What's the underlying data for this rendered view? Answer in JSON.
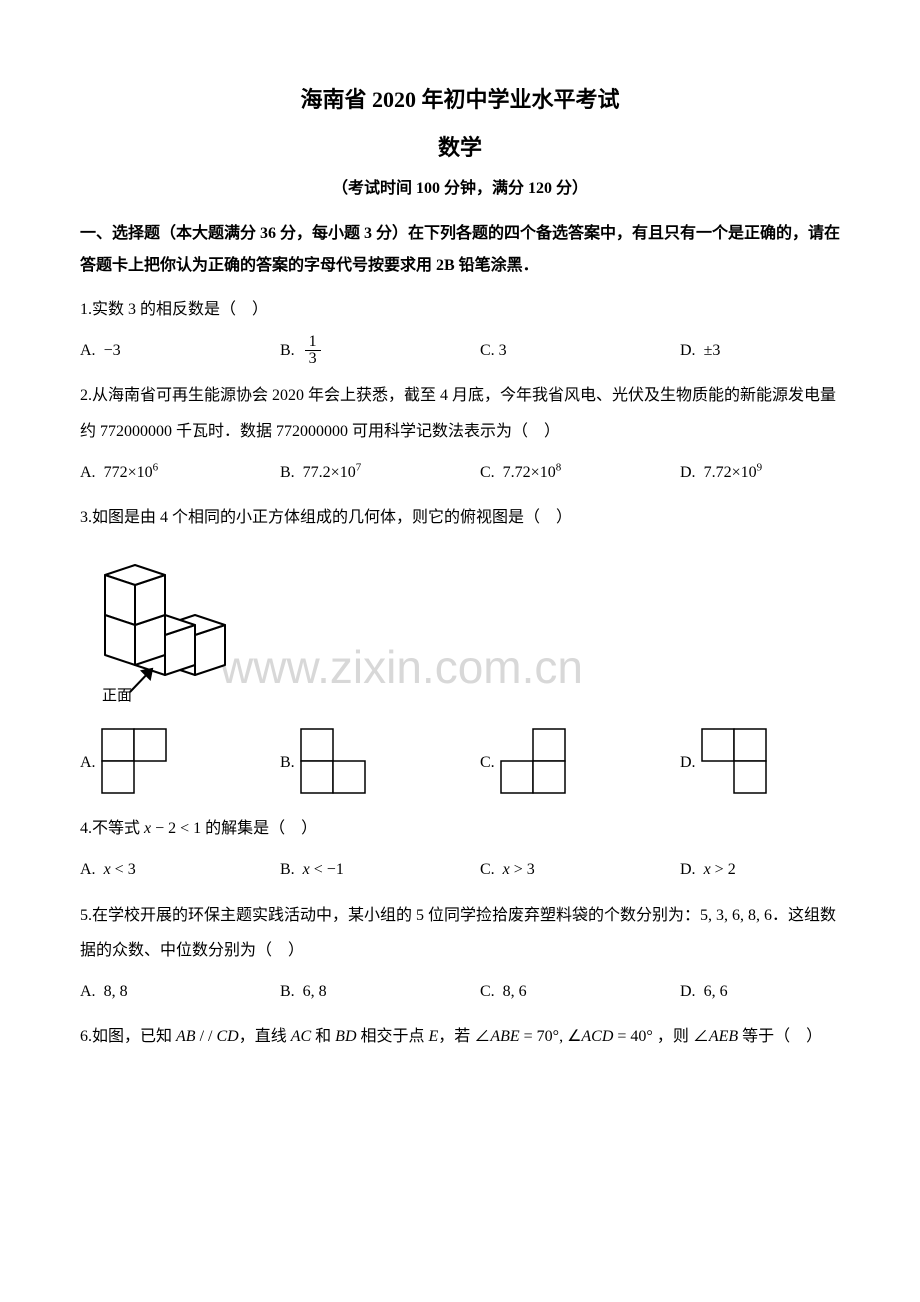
{
  "header": {
    "title_main": "海南省 2020 年初中学业水平考试",
    "title_sub": "数学",
    "exam_info": "（考试时间 100 分钟，满分 120 分）"
  },
  "section1": {
    "heading": "一、选择题（本大题满分 36 分，每小题 3 分）在下列各题的四个备选答案中，有且只有一个是正确的，请在答题卡上把你认为正确的答案的字母代号按要求用 2B 铅笔涂黑．"
  },
  "q1": {
    "text": "1.实数 3 的相反数是（　）",
    "opt_a_label": "A.",
    "opt_a_value": "−3",
    "opt_b_label": "B.",
    "opt_b_frac_num": "1",
    "opt_b_frac_den": "3",
    "opt_c_label": "C.",
    "opt_c_value": "3",
    "opt_d_label": "D.",
    "opt_d_value": "±3"
  },
  "q2": {
    "text": "2.从海南省可再生能源协会 2020 年会上获悉，截至 4 月底，今年我省风电、光伏及生物质能的新能源发电量约 772000000 千瓦时．数据 772000000 可用科学记数法表示为（　）",
    "opt_a_label": "A.",
    "opt_a_html": "772×10<sup>6</sup>",
    "opt_b_label": "B.",
    "opt_b_html": "77.2×10<sup>7</sup>",
    "opt_c_label": "C.",
    "opt_c_html": "7.72×10<sup>8</sup>",
    "opt_d_label": "D.",
    "opt_d_html": "7.72×10<sup>9</sup>"
  },
  "q3": {
    "text": "3.如图是由 4 个相同的小正方体组成的几何体，则它的俯视图是（　）",
    "figure_label": "正面",
    "opt_a_label": "A.",
    "opt_b_label": "B.",
    "opt_c_label": "C.",
    "opt_d_label": "D.",
    "shape_a": {
      "type": "2x2-missing-bottom-right",
      "squares": [
        [
          0,
          0
        ],
        [
          1,
          0
        ],
        [
          0,
          1
        ]
      ]
    },
    "shape_b": {
      "type": "2x2-missing-top-right",
      "squares": [
        [
          0,
          0
        ],
        [
          0,
          1
        ],
        [
          1,
          1
        ]
      ]
    },
    "shape_c": {
      "type": "2x2-missing-top-left",
      "squares": [
        [
          1,
          0
        ],
        [
          0,
          1
        ],
        [
          1,
          1
        ]
      ]
    },
    "shape_d": {
      "type": "2x2-missing-bottom-left",
      "squares": [
        [
          0,
          0
        ],
        [
          1,
          0
        ],
        [
          1,
          1
        ]
      ]
    },
    "cell_size": 32,
    "stroke_color": "#000000",
    "stroke_width": 1.5
  },
  "q4": {
    "text_html": "4.不等式 <span class=\"italic\">x</span> − 2 &lt; 1 的解集是（　）",
    "opt_a_label": "A.",
    "opt_a_html": "<span class=\"italic\">x</span> &lt; 3",
    "opt_b_label": "B.",
    "opt_b_html": "<span class=\"italic\">x</span> &lt; −1",
    "opt_c_label": "C.",
    "opt_c_html": "<span class=\"italic\">x</span> &gt; 3",
    "opt_d_label": "D.",
    "opt_d_html": "<span class=\"italic\">x</span> &gt; 2"
  },
  "q5": {
    "text": "5.在学校开展的环保主题实践活动中，某小组的 5 位同学捡拾废弃塑料袋的个数分别为：5, 3, 6, 8, 6．这组数据的众数、中位数分别为（　）",
    "opt_a_label": "A.",
    "opt_a_value": "8, 8",
    "opt_b_label": "B.",
    "opt_b_value": "6, 8",
    "opt_c_label": "C.",
    "opt_c_value": "8, 6",
    "opt_d_label": "D.",
    "opt_d_value": "6, 6"
  },
  "q6": {
    "text_html": "6.如图，已知 <span class=\"italic\">AB</span> / / <span class=\"italic\">CD</span>，直线 <span class=\"italic\">AC</span> 和 <span class=\"italic\">BD</span> 相交于点 <span class=\"italic\">E</span>，若 ∠<span class=\"italic\">ABE</span> = 70°, ∠<span class=\"italic\">ACD</span> = 40° ，则 ∠<span class=\"italic\">AEB</span> 等于（　）"
  },
  "watermark": "www.zixin.com.cn",
  "colors": {
    "text": "#000000",
    "background": "#ffffff",
    "watermark": "#d8d8d8"
  }
}
